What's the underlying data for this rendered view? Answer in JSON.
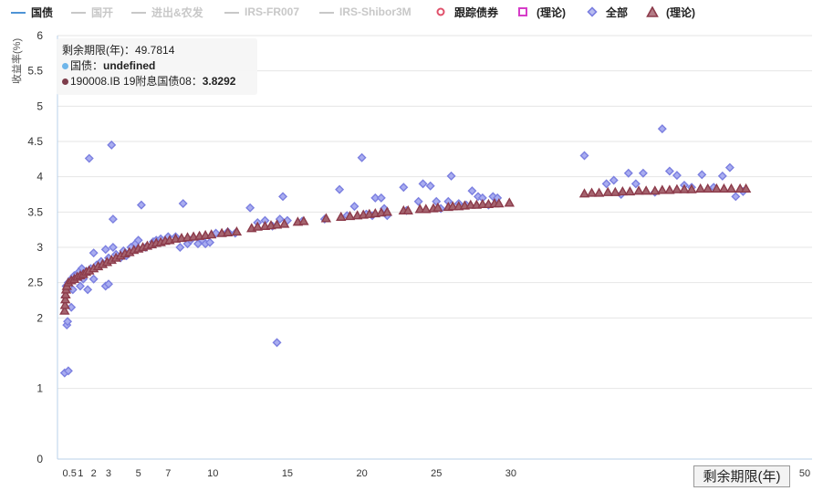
{
  "legend": [
    {
      "label": "国债",
      "state": "on",
      "kind": "line",
      "color": "#4e94d6"
    },
    {
      "label": "国开",
      "state": "off",
      "kind": "line",
      "color": "#c8c8c8"
    },
    {
      "label": "进出&农发",
      "state": "off",
      "kind": "line",
      "color": "#c8c8c8"
    },
    {
      "label": "IRS-FR007",
      "state": "off",
      "kind": "line",
      "color": "#c8c8c8"
    },
    {
      "label": "IRS-Shibor3M",
      "state": "off",
      "kind": "line",
      "color": "#c8c8c8"
    },
    {
      "label": "跟踪债券",
      "state": "on",
      "kind": "circle",
      "color": "#e0506a"
    },
    {
      "label": "(理论)",
      "state": "on",
      "kind": "square",
      "color": "#d63cc8"
    },
    {
      "label": "全部",
      "state": "on",
      "kind": "diamond",
      "color": "#7b7fe0"
    },
    {
      "label": "(理论)",
      "state": "on",
      "kind": "triangle",
      "color": "#8c3b4b"
    }
  ],
  "tooltip": {
    "header": "剩余期限(年)：49.7814",
    "line1_label": "国债：",
    "line1_value": "undefined",
    "line2_label": "190008.IB 19附息国债08：",
    "line2_value": "3.8292",
    "dot1_color": "#6fb6ea",
    "dot2_color": "#7d3d4b"
  },
  "chart_data": {
    "type": "scatter",
    "xlabel": "剩余期限(年)",
    "ylabel": "收益率(%)",
    "ylim": [
      0,
      6
    ],
    "x_ticks": [
      0.5,
      1,
      2,
      3,
      5,
      7,
      10,
      15,
      20,
      25,
      30,
      50
    ],
    "x_tick_labels": [
      "0.5",
      "1",
      "2",
      "3",
      "5",
      "7",
      "10",
      "15",
      "20",
      "25",
      "30",
      "50"
    ],
    "y_ticks": [
      0,
      1,
      2,
      2.5,
      3,
      3.5,
      4,
      4.5,
      5,
      5.5,
      6
    ],
    "y_tick_labels": [
      "0",
      "1",
      "2",
      "2.5",
      "3",
      "3.5",
      "4",
      "4.5",
      "5",
      "5.5",
      "6"
    ],
    "grid": true,
    "series": [
      {
        "name": "全部",
        "marker": "diamond",
        "color": "#7b7fe0",
        "points": [
          [
            0.05,
            1.22
          ],
          [
            0.3,
            1.25
          ],
          [
            0.2,
            1.9
          ],
          [
            0.25,
            1.95
          ],
          [
            0.5,
            2.15
          ],
          [
            0.1,
            2.3
          ],
          [
            0.15,
            2.45
          ],
          [
            0.3,
            2.5
          ],
          [
            0.6,
            2.4
          ],
          [
            0.5,
            2.55
          ],
          [
            0.7,
            2.6
          ],
          [
            0.9,
            2.62
          ],
          [
            1.1,
            2.45
          ],
          [
            1.3,
            2.55
          ],
          [
            1.2,
            2.7
          ],
          [
            1.5,
            2.65
          ],
          [
            1.0,
            2.65
          ],
          [
            1.8,
            2.7
          ],
          [
            1.6,
            2.4
          ],
          [
            2.0,
            2.55
          ],
          [
            2.0,
            2.92
          ],
          [
            2.2,
            2.75
          ],
          [
            1.7,
            4.26
          ],
          [
            2.5,
            2.8
          ],
          [
            2.8,
            2.45
          ],
          [
            3.0,
            2.48
          ],
          [
            3.0,
            2.85
          ],
          [
            2.8,
            2.97
          ],
          [
            3.3,
            3.0
          ],
          [
            3.3,
            3.4
          ],
          [
            3.2,
            4.45
          ],
          [
            3.5,
            2.9
          ],
          [
            3.8,
            2.85
          ],
          [
            4.0,
            2.95
          ],
          [
            4.2,
            2.88
          ],
          [
            4.5,
            3.0
          ],
          [
            4.8,
            3.05
          ],
          [
            5.0,
            3.1
          ],
          [
            5.2,
            3.6
          ],
          [
            5.5,
            3.0
          ],
          [
            6.0,
            3.08
          ],
          [
            6.2,
            3.1
          ],
          [
            6.5,
            3.12
          ],
          [
            7.0,
            3.15
          ],
          [
            7.5,
            3.15
          ],
          [
            7.8,
            3.0
          ],
          [
            8.0,
            3.62
          ],
          [
            8.3,
            3.05
          ],
          [
            8.5,
            3.1
          ],
          [
            9.0,
            3.05
          ],
          [
            9.3,
            3.1
          ],
          [
            9.5,
            3.05
          ],
          [
            9.8,
            3.07
          ],
          [
            10.2,
            3.2
          ],
          [
            11.0,
            3.22
          ],
          [
            11.5,
            3.2
          ],
          [
            12.5,
            3.56
          ],
          [
            13.0,
            3.35
          ],
          [
            13.5,
            3.38
          ],
          [
            14.0,
            3.3
          ],
          [
            14.3,
            1.65
          ],
          [
            14.5,
            3.4
          ],
          [
            14.7,
            3.72
          ],
          [
            15.0,
            3.38
          ],
          [
            16.0,
            3.37
          ],
          [
            17.5,
            3.4
          ],
          [
            18.5,
            3.82
          ],
          [
            19.0,
            3.45
          ],
          [
            19.5,
            3.58
          ],
          [
            20.0,
            4.27
          ],
          [
            20.3,
            3.47
          ],
          [
            20.7,
            3.45
          ],
          [
            20.9,
            3.7
          ],
          [
            21.3,
            3.7
          ],
          [
            21.5,
            3.55
          ],
          [
            21.7,
            3.45
          ],
          [
            22.8,
            3.85
          ],
          [
            23.0,
            3.52
          ],
          [
            23.8,
            3.65
          ],
          [
            24.1,
            3.9
          ],
          [
            24.6,
            3.87
          ],
          [
            25.0,
            3.65
          ],
          [
            25.3,
            3.55
          ],
          [
            25.8,
            3.65
          ],
          [
            26.0,
            4.01
          ],
          [
            26.5,
            3.62
          ],
          [
            27.0,
            3.6
          ],
          [
            27.4,
            3.8
          ],
          [
            27.8,
            3.72
          ],
          [
            28.1,
            3.7
          ],
          [
            28.5,
            3.6
          ],
          [
            28.8,
            3.72
          ],
          [
            29.1,
            3.7
          ],
          [
            35.0,
            4.3
          ],
          [
            36.5,
            3.9
          ],
          [
            37.0,
            3.95
          ],
          [
            37.5,
            3.75
          ],
          [
            38.0,
            4.05
          ],
          [
            38.5,
            3.9
          ],
          [
            39.0,
            4.05
          ],
          [
            39.8,
            3.78
          ],
          [
            40.3,
            4.68
          ],
          [
            40.8,
            4.08
          ],
          [
            41.3,
            4.02
          ],
          [
            41.8,
            3.88
          ],
          [
            42.3,
            3.85
          ],
          [
            43.0,
            4.03
          ],
          [
            43.8,
            3.85
          ],
          [
            44.4,
            4.01
          ],
          [
            44.9,
            4.13
          ],
          [
            45.3,
            3.72
          ],
          [
            45.8,
            3.79
          ]
        ]
      },
      {
        "name": "(理论)",
        "marker": "triangle",
        "color": "#8c3b4b",
        "points": [
          [
            0.05,
            2.1
          ],
          [
            0.08,
            2.18
          ],
          [
            0.1,
            2.26
          ],
          [
            0.12,
            2.33
          ],
          [
            0.15,
            2.4
          ],
          [
            0.2,
            2.45
          ],
          [
            0.3,
            2.5
          ],
          [
            0.5,
            2.53
          ],
          [
            0.7,
            2.55
          ],
          [
            0.9,
            2.58
          ],
          [
            1.1,
            2.6
          ],
          [
            1.3,
            2.62
          ],
          [
            1.5,
            2.65
          ],
          [
            1.7,
            2.67
          ],
          [
            2.0,
            2.7
          ],
          [
            2.3,
            2.73
          ],
          [
            2.6,
            2.76
          ],
          [
            2.9,
            2.79
          ],
          [
            3.2,
            2.82
          ],
          [
            3.5,
            2.85
          ],
          [
            3.8,
            2.88
          ],
          [
            4.1,
            2.91
          ],
          [
            4.4,
            2.93
          ],
          [
            4.7,
            2.96
          ],
          [
            5.0,
            2.98
          ],
          [
            5.3,
            3.0
          ],
          [
            5.6,
            3.02
          ],
          [
            5.9,
            3.04
          ],
          [
            6.2,
            3.06
          ],
          [
            6.5,
            3.07
          ],
          [
            6.8,
            3.09
          ],
          [
            7.1,
            3.1
          ],
          [
            7.5,
            3.12
          ],
          [
            7.9,
            3.13
          ],
          [
            8.3,
            3.14
          ],
          [
            8.7,
            3.15
          ],
          [
            9.1,
            3.16
          ],
          [
            9.5,
            3.17
          ],
          [
            9.9,
            3.18
          ],
          [
            10.6,
            3.2
          ],
          [
            11.0,
            3.21
          ],
          [
            11.6,
            3.22
          ],
          [
            12.6,
            3.27
          ],
          [
            13.0,
            3.29
          ],
          [
            13.5,
            3.3
          ],
          [
            13.9,
            3.31
          ],
          [
            14.3,
            3.32
          ],
          [
            14.8,
            3.33
          ],
          [
            15.7,
            3.36
          ],
          [
            16.1,
            3.37
          ],
          [
            17.6,
            3.41
          ],
          [
            18.6,
            3.43
          ],
          [
            19.2,
            3.44
          ],
          [
            19.7,
            3.45
          ],
          [
            20.1,
            3.46
          ],
          [
            20.5,
            3.47
          ],
          [
            20.9,
            3.48
          ],
          [
            21.3,
            3.49
          ],
          [
            21.7,
            3.5
          ],
          [
            22.8,
            3.52
          ],
          [
            23.1,
            3.52
          ],
          [
            23.9,
            3.54
          ],
          [
            24.3,
            3.54
          ],
          [
            24.8,
            3.55
          ],
          [
            25.1,
            3.56
          ],
          [
            25.8,
            3.57
          ],
          [
            26.1,
            3.58
          ],
          [
            26.5,
            3.58
          ],
          [
            26.9,
            3.59
          ],
          [
            27.3,
            3.6
          ],
          [
            27.7,
            3.6
          ],
          [
            28.1,
            3.61
          ],
          [
            28.5,
            3.61
          ],
          [
            28.9,
            3.62
          ],
          [
            29.2,
            3.62
          ],
          [
            29.9,
            3.63
          ],
          [
            35.0,
            3.76
          ],
          [
            35.5,
            3.77
          ],
          [
            36.0,
            3.77
          ],
          [
            36.6,
            3.78
          ],
          [
            37.1,
            3.78
          ],
          [
            37.6,
            3.79
          ],
          [
            38.1,
            3.79
          ],
          [
            38.7,
            3.8
          ],
          [
            39.2,
            3.8
          ],
          [
            39.8,
            3.8
          ],
          [
            40.3,
            3.81
          ],
          [
            40.8,
            3.81
          ],
          [
            41.3,
            3.82
          ],
          [
            41.8,
            3.82
          ],
          [
            42.3,
            3.82
          ],
          [
            42.9,
            3.83
          ],
          [
            43.4,
            3.83
          ],
          [
            44.0,
            3.83
          ],
          [
            44.5,
            3.83
          ],
          [
            45.0,
            3.83
          ],
          [
            45.6,
            3.83
          ],
          [
            46.0,
            3.83
          ]
        ]
      }
    ]
  }
}
